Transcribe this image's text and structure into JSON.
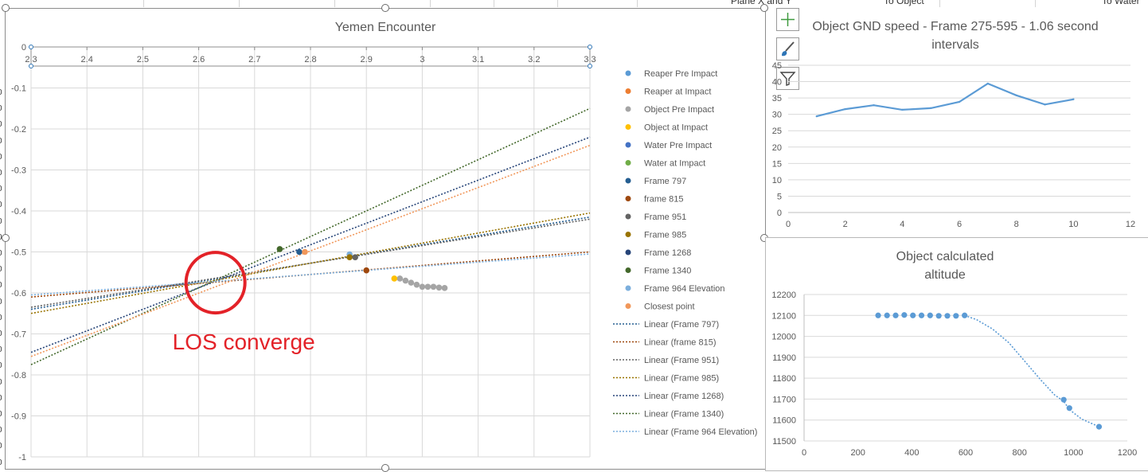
{
  "sheet": {
    "header_cells": [
      "Plane X and Y",
      "To Object",
      "To Water"
    ],
    "row_numbers": [
      "0",
      "0",
      "0",
      "0",
      "0",
      "0",
      "0",
      "0",
      "0",
      "0",
      "0",
      "0",
      "0",
      "0",
      "0",
      "0",
      "0",
      "0",
      "0",
      "0",
      "0",
      "0",
      "0",
      "0",
      "0"
    ]
  },
  "chart_tools": {
    "icons": [
      "chart-elements-icon",
      "chart-styles-icon",
      "chart-filters-icon"
    ]
  },
  "chart_data": [
    {
      "id": "main",
      "type": "scatter",
      "title": "Yemen Encounter",
      "xlim": [
        2.3,
        3.3
      ],
      "ylim": [
        -1,
        0
      ],
      "x_ticks": [
        2.3,
        2.4,
        2.5,
        2.6,
        2.7,
        2.8,
        2.9,
        3,
        3.1,
        3.2,
        3.3
      ],
      "x_tick_labels": [
        "2.3",
        "2.4",
        "2.5",
        "2.6",
        "2.7",
        "2.8",
        "2.9",
        "3",
        "3.1",
        "3.2",
        "3.3"
      ],
      "y_ticks": [
        0,
        -0.1,
        -0.2,
        -0.3,
        -0.4,
        -0.5,
        -0.6,
        -0.7,
        -0.8,
        -0.9,
        -1
      ],
      "y_tick_labels": [
        "0",
        "-0.1",
        "-0.2",
        "-0.3",
        "-0.4",
        "-0.5",
        "-0.6",
        "-0.7",
        "-0.8",
        "-0.9",
        "-1"
      ],
      "grid": true,
      "legend_position": "right",
      "legend": [
        {
          "name": "Reaper Pre Impact",
          "kind": "marker",
          "color": "#5b9bd5"
        },
        {
          "name": "Reaper at Impact",
          "kind": "marker",
          "color": "#ed7d31"
        },
        {
          "name": "Object Pre Impact",
          "kind": "marker",
          "color": "#a5a5a5"
        },
        {
          "name": "Object at Impact",
          "kind": "marker",
          "color": "#ffc000"
        },
        {
          "name": "Water Pre Impact",
          "kind": "marker",
          "color": "#4472c4"
        },
        {
          "name": "Water at Impact",
          "kind": "marker",
          "color": "#70ad47"
        },
        {
          "name": "Frame 797",
          "kind": "marker",
          "color": "#255e91"
        },
        {
          "name": "frame 815",
          "kind": "marker",
          "color": "#9e480e"
        },
        {
          "name": "Frame 951",
          "kind": "marker",
          "color": "#636363"
        },
        {
          "name": "Frame 985",
          "kind": "marker",
          "color": "#997300"
        },
        {
          "name": "Frame 1268",
          "kind": "marker",
          "color": "#264478"
        },
        {
          "name": "Frame 1340",
          "kind": "marker",
          "color": "#43682b"
        },
        {
          "name": "Frame 964 Elevation",
          "kind": "marker",
          "color": "#7cafdd"
        },
        {
          "name": "Closest point",
          "kind": "marker",
          "color": "#f1975a"
        },
        {
          "name": "Linear (Frame 797)",
          "kind": "line",
          "color": "#255e91"
        },
        {
          "name": "Linear (frame 815)",
          "kind": "line",
          "color": "#9e480e"
        },
        {
          "name": "Linear (Frame 951)",
          "kind": "line",
          "color": "#636363"
        },
        {
          "name": "Linear (Frame 985)",
          "kind": "line",
          "color": "#997300"
        },
        {
          "name": "Linear (Frame 1268)",
          "kind": "line",
          "color": "#264478"
        },
        {
          "name": "Linear (Frame 1340)",
          "kind": "line",
          "color": "#43682b"
        },
        {
          "name": "Linear (Frame 964 Elevation)",
          "kind": "line",
          "color": "#7cafdd"
        }
      ],
      "points": [
        {
          "series": "Frame 797",
          "x": 2.78,
          "y": -0.5,
          "color": "#255e91"
        },
        {
          "series": "Closest point",
          "x": 2.79,
          "y": -0.5,
          "color": "#f1975a"
        },
        {
          "series": "Frame 1340",
          "x": 2.745,
          "y": -0.493,
          "color": "#43682b"
        },
        {
          "series": "Frame 964 Elevation",
          "x": 2.87,
          "y": -0.506,
          "color": "#7cafdd"
        },
        {
          "series": "Frame 985",
          "x": 2.87,
          "y": -0.513,
          "color": "#997300"
        },
        {
          "series": "Frame 951",
          "x": 2.88,
          "y": -0.513,
          "color": "#636363"
        },
        {
          "series": "frame 815",
          "x": 2.9,
          "y": -0.545,
          "color": "#9e480e"
        },
        {
          "series": "Object at Impact",
          "x": 2.95,
          "y": -0.565,
          "color": "#ffc000"
        }
      ],
      "object_pre_impact": {
        "color": "#a5a5a5",
        "x": [
          2.96,
          2.97,
          2.98,
          2.99,
          3.0,
          3.01,
          3.02,
          3.03,
          3.04
        ],
        "y": [
          -0.565,
          -0.57,
          -0.575,
          -0.58,
          -0.585,
          -0.585,
          -0.585,
          -0.587,
          -0.588
        ]
      },
      "trendlines": [
        {
          "name": "Linear (Frame 1340)",
          "color": "#43682b",
          "x": [
            2.3,
            3.3
          ],
          "y": [
            -0.775,
            -0.15
          ]
        },
        {
          "name": "Linear (Frame 1268)",
          "color": "#264478",
          "x": [
            2.3,
            3.3
          ],
          "y": [
            -0.745,
            -0.22
          ]
        },
        {
          "name": "Linear (Frame 797)",
          "color": "#255e91",
          "x": [
            2.3,
            3.3
          ],
          "y": [
            -0.64,
            -0.415
          ]
        },
        {
          "name": "Linear (Frame 951)",
          "color": "#636363",
          "x": [
            2.3,
            3.3
          ],
          "y": [
            -0.635,
            -0.42
          ]
        },
        {
          "name": "Linear (Frame 985)",
          "color": "#997300",
          "x": [
            2.3,
            3.3
          ],
          "y": [
            -0.65,
            -0.405
          ]
        },
        {
          "name": "Linear (frame 815)",
          "color": "#9e480e",
          "x": [
            2.3,
            3.3
          ],
          "y": [
            -0.61,
            -0.5
          ]
        },
        {
          "name": "Linear (Frame 964 Elevation)",
          "color": "#7cafdd",
          "x": [
            2.3,
            3.3
          ],
          "y": [
            -0.605,
            -0.505
          ]
        },
        {
          "name": "Closest point trend",
          "color": "#f1975a",
          "x": [
            2.3,
            3.3
          ],
          "y": [
            -0.755,
            -0.24
          ]
        }
      ],
      "annotation": {
        "text": "LOS converge",
        "color": "#e32228",
        "center_x": 2.63,
        "center_y": -0.575
      }
    },
    {
      "id": "speed",
      "type": "line",
      "title": "Object GND speed - Frame 275-595 - 1.06 second intervals",
      "title_lines": [
        "Object GND speed - Frame 275-595 - 1.06 second",
        "intervals"
      ],
      "xlim": [
        0,
        12
      ],
      "ylim": [
        0,
        45
      ],
      "x_ticks": [
        0,
        2,
        4,
        6,
        8,
        10,
        12
      ],
      "y_ticks": [
        0,
        5,
        10,
        15,
        20,
        25,
        30,
        35,
        40,
        45
      ],
      "x": [
        1,
        2,
        3,
        4,
        5,
        6,
        7,
        8,
        9,
        10
      ],
      "values": [
        29.4,
        31.6,
        32.8,
        31.4,
        31.9,
        33.8,
        39.4,
        35.8,
        33.0,
        34.6
      ],
      "color": "#5b9bd5",
      "grid": true
    },
    {
      "id": "altitude",
      "type": "scatter",
      "title": "Object calculated altitude",
      "title_lines": [
        "Object calculated",
        "altitude"
      ],
      "xlim": [
        0,
        1200
      ],
      "ylim": [
        11500,
        12200
      ],
      "x_ticks": [
        0,
        200,
        400,
        600,
        800,
        1000,
        1200
      ],
      "y_ticks": [
        11500,
        11600,
        11700,
        11800,
        11900,
        12000,
        12100,
        12200
      ],
      "x": [
        275,
        308,
        340,
        372,
        404,
        436,
        468,
        500,
        532,
        564,
        596,
        964,
        985,
        1095
      ],
      "values": [
        12100,
        12100,
        12100,
        12102,
        12100,
        12100,
        12100,
        12098,
        12098,
        12098,
        12100,
        11697,
        11657,
        11568
      ],
      "trend_x": [
        596,
        640,
        700,
        760,
        820,
        880,
        930,
        964,
        985,
        1030,
        1095
      ],
      "trend_y": [
        12100,
        12080,
        12035,
        11970,
        11880,
        11790,
        11720,
        11690,
        11650,
        11605,
        11568
      ],
      "color": "#5b9bd5",
      "grid": true
    }
  ]
}
